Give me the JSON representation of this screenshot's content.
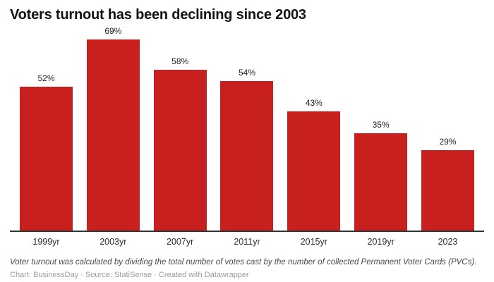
{
  "header": {
    "title": "Voters turnout has been declining since 2003"
  },
  "chart_data": {
    "type": "bar",
    "title": "Voters turnout has been declining since 2003",
    "categories": [
      "1999yr",
      "2003yr",
      "2007yr",
      "2011yr",
      "2015yr",
      "2019yr",
      "2023"
    ],
    "values": [
      52,
      69,
      58,
      54,
      43,
      35,
      29
    ],
    "value_labels": [
      "52%",
      "69%",
      "58%",
      "54%",
      "43%",
      "35%",
      "29%"
    ],
    "value_suffix": "%",
    "xlabel": "",
    "ylabel": "",
    "ylim": [
      0,
      70
    ],
    "grid": false,
    "legend": "none",
    "bar_color": "#c8201e",
    "axis_line_color": "#333333"
  },
  "footer": {
    "footnote": "Voter turnout was calculated by dividing the total number of votes cast by the number of collected Permanent Voter Cards (PVCs).",
    "attribution": "Chart: BusinessDay · Source: StatiSense · Created with Datawrapper"
  }
}
